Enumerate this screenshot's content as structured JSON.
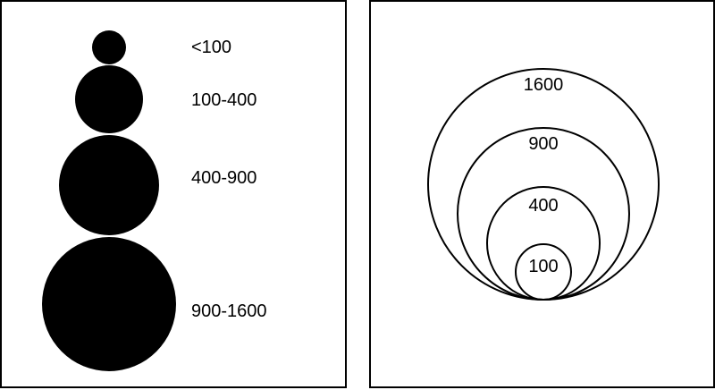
{
  "colors": {
    "fill": "#000000",
    "stroke": "#000000",
    "background": "#ffffff"
  },
  "graduated_legend": {
    "items": [
      {
        "label": "<100"
      },
      {
        "label": "100-400"
      },
      {
        "label": "400-900"
      },
      {
        "label": "900-1600"
      }
    ]
  },
  "nested_legend": {
    "items": [
      {
        "label": "1600"
      },
      {
        "label": "900"
      },
      {
        "label": "400"
      },
      {
        "label": "100"
      }
    ]
  }
}
